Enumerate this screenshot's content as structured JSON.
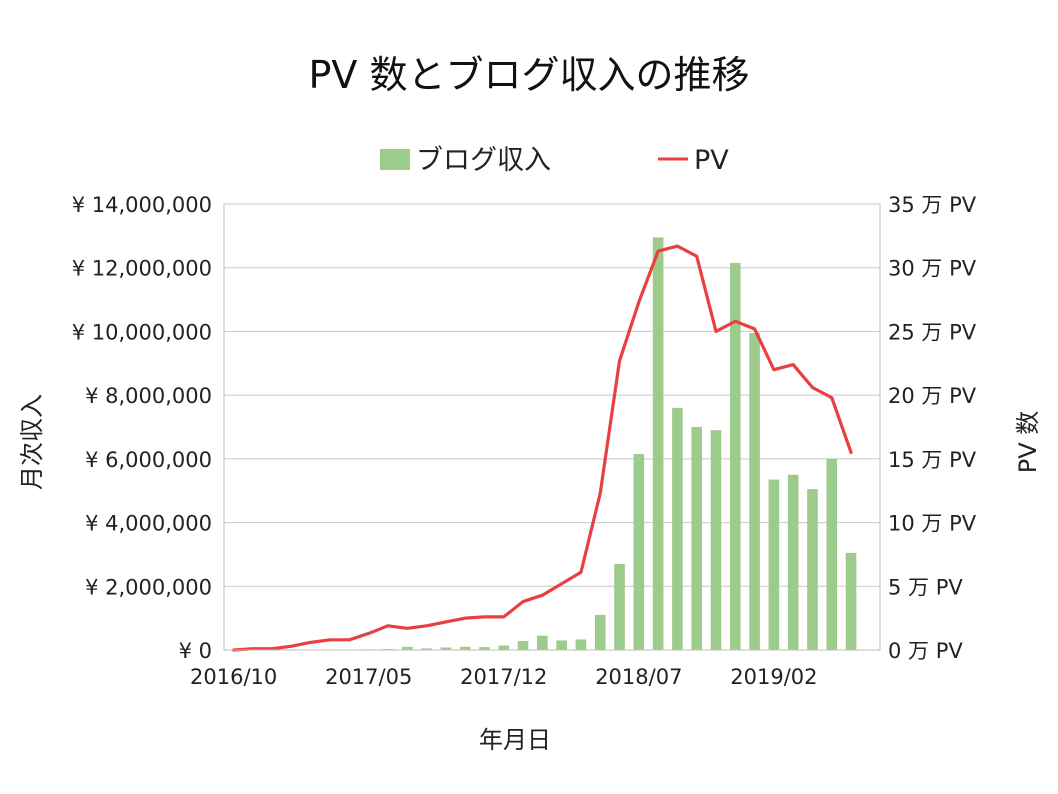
{
  "chart_data": {
    "title": "PV 数とブログ収入の推移",
    "xlabel": "年月日",
    "ylabel_left": "月次収入",
    "ylabel_right": "PV 数",
    "legend_position": "top",
    "grid": true,
    "x_tick_labels": [
      "2016/10",
      "2017/05",
      "2017/12",
      "2018/07",
      "2019/02"
    ],
    "y_left_ticks": [
      "¥ 0",
      "¥ 2,000,000",
      "¥ 4,000,000",
      "¥ 6,000,000",
      "¥ 8,000,000",
      "¥ 10,000,000",
      "¥ 12,000,000",
      "¥ 14,000,000"
    ],
    "y_right_ticks": [
      "0 万 PV",
      "5 万 PV",
      "10 万 PV",
      "15 万 PV",
      "20 万 PV",
      "25 万 PV",
      "30 万 PV",
      "35 万 PV"
    ],
    "ylim_left": [
      0,
      14000000
    ],
    "ylim_right": [
      0,
      35
    ],
    "x": [
      "2016/10",
      "2016/11",
      "2016/12",
      "2017/01",
      "2017/02",
      "2017/03",
      "2017/04",
      "2017/05",
      "2017/06",
      "2017/07",
      "2017/08",
      "2017/09",
      "2017/10",
      "2017/11",
      "2017/12",
      "2018/01",
      "2018/02",
      "2018/03",
      "2018/04",
      "2018/05",
      "2018/06",
      "2018/07",
      "2018/08",
      "2018/09",
      "2018/10",
      "2018/11",
      "2018/12",
      "2019/01",
      "2019/02",
      "2019/03",
      "2019/04",
      "2019/05",
      "2019/06",
      "2019/07"
    ],
    "series": [
      {
        "name": "ブログ収入",
        "type": "bar",
        "axis": "left",
        "color": "#9dcb8c",
        "values": [
          0,
          0,
          0,
          0,
          0,
          0,
          0,
          20000,
          30000,
          100000,
          50000,
          80000,
          100000,
          90000,
          140000,
          280000,
          450000,
          300000,
          330000,
          1100000,
          2700000,
          6150000,
          12950000,
          7600000,
          7000000,
          6900000,
          12150000,
          9950000,
          5350000,
          5500000,
          5050000,
          6000000,
          3050000,
          0
        ]
      },
      {
        "name": "PV",
        "type": "line",
        "axis": "right",
        "color": "#e84040",
        "values": [
          0,
          0.1,
          0.1,
          0.3,
          0.6,
          0.8,
          0.8,
          1.3,
          1.9,
          1.7,
          1.9,
          2.2,
          2.5,
          2.6,
          2.6,
          3.8,
          4.3,
          5.2,
          6.1,
          12.3,
          22.7,
          27.3,
          31.3,
          31.7,
          30.9,
          25.0,
          25.8,
          25.2,
          22.0,
          22.4,
          20.6,
          19.8,
          15.5,
          null
        ]
      }
    ]
  }
}
